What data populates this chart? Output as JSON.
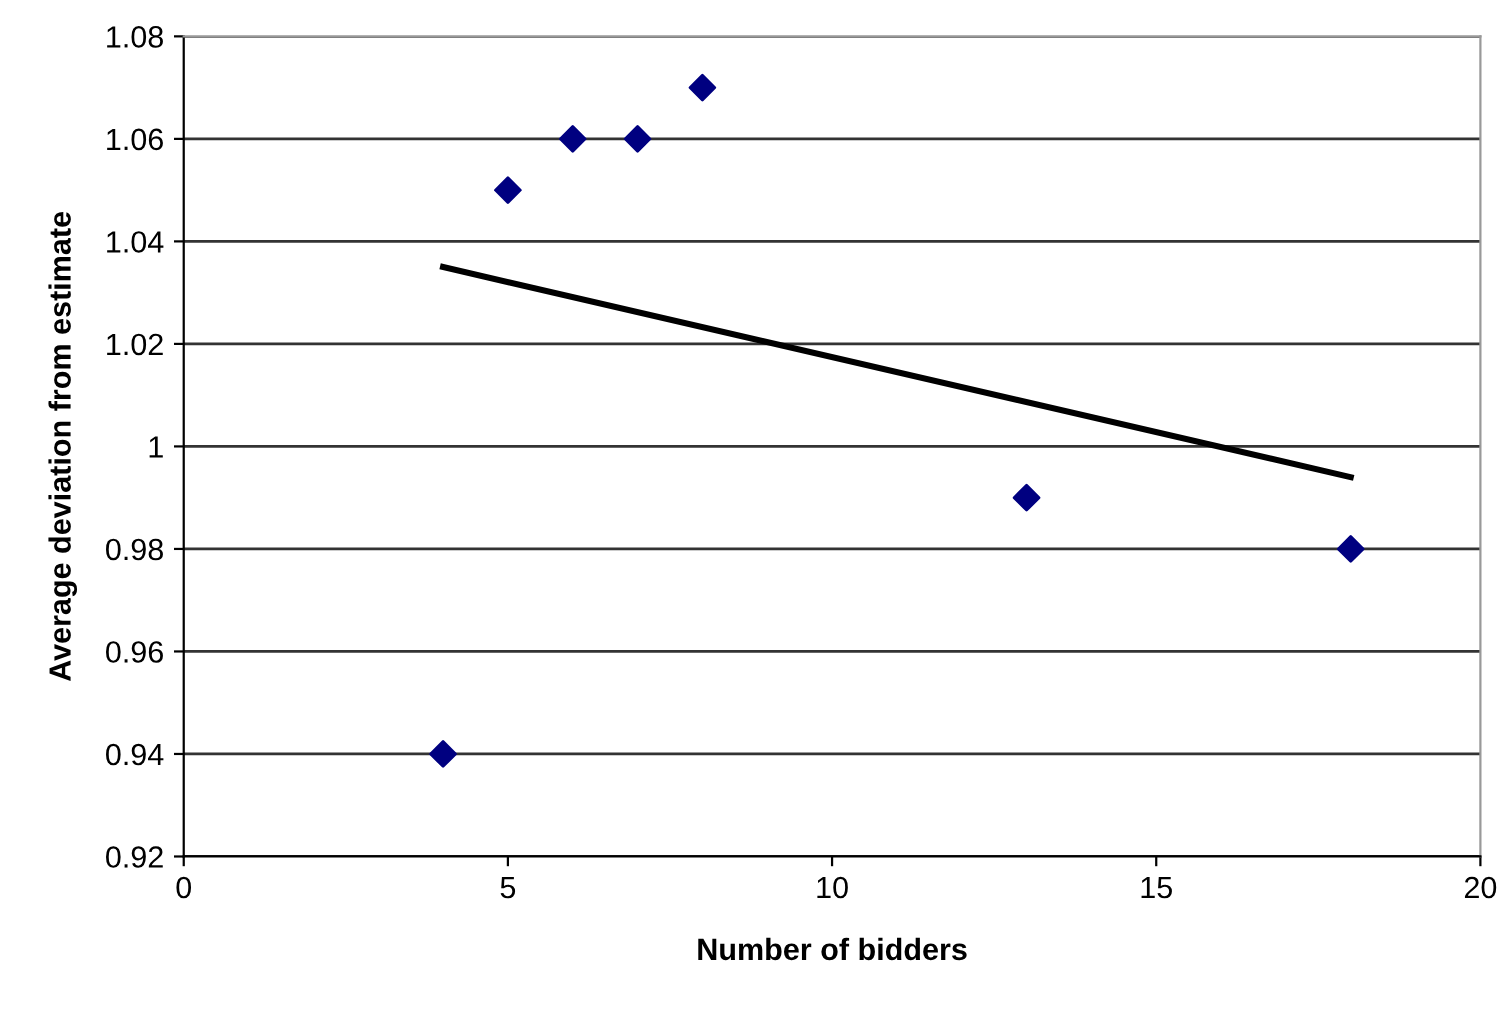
{
  "chart_data": {
    "type": "scatter",
    "xlabel": "Number of bidders",
    "ylabel": "Average deviation from estimate",
    "xlim": [
      0,
      20
    ],
    "xticks": [
      0,
      5,
      10,
      15,
      20
    ],
    "ylim": [
      0.92,
      1.08
    ],
    "yticks": [
      0.92,
      0.94,
      0.96,
      0.98,
      1,
      1.02,
      1.04,
      1.06,
      1.08
    ],
    "grid": "y",
    "legend": false,
    "series": [
      {
        "color": "#000080",
        "marker": "diamond",
        "x": [
          4,
          5,
          6,
          7,
          8,
          13,
          18
        ],
        "values": [
          0.94,
          1.05,
          1.06,
          1.06,
          1.07,
          0.99,
          0.98
        ]
      },
      {
        "type": "line",
        "color": "#000000",
        "marker": "none",
        "line_style": "solid",
        "x": [
          4,
          18
        ],
        "values": [
          1.035,
          0.994
        ]
      }
    ]
  }
}
